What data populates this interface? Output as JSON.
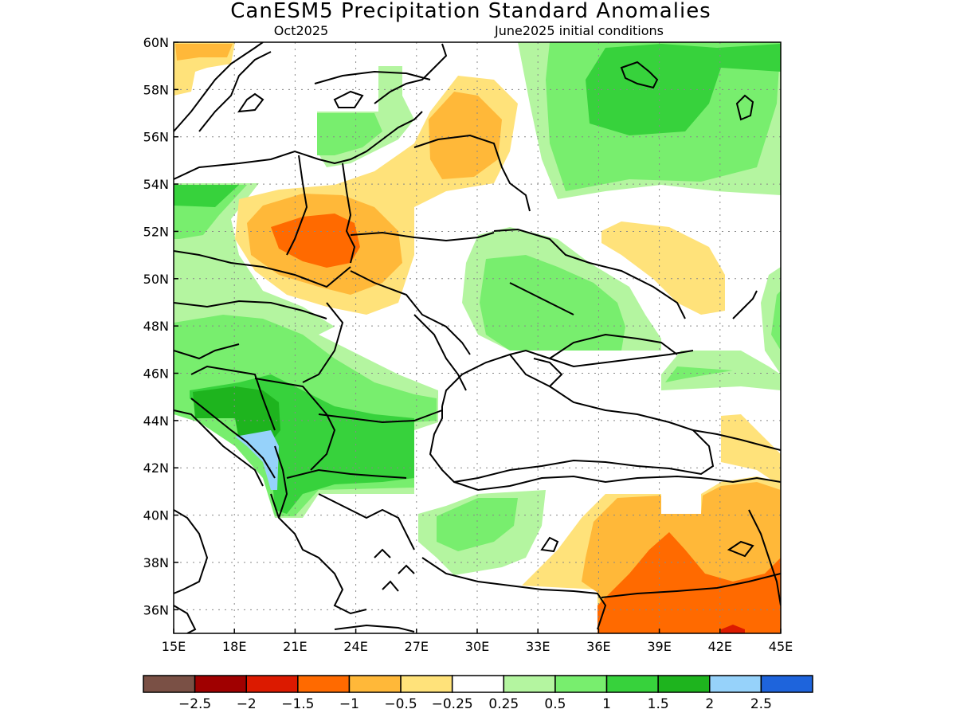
{
  "header": {
    "title": "CanESM5 Precipitation Standard Anomalies",
    "month": "Oct2025",
    "init": "June2025 initial conditions"
  },
  "map": {
    "lon_range": [
      15,
      45
    ],
    "lat_range": [
      35,
      60
    ],
    "grid": true,
    "lon_ticks": [
      "15E",
      "18E",
      "21E",
      "24E",
      "27E",
      "30E",
      "33E",
      "36E",
      "39E",
      "42E",
      "45E"
    ],
    "lat_ticks": [
      "60N",
      "58N",
      "56N",
      "54N",
      "52N",
      "50N",
      "48N",
      "46N",
      "44N",
      "42N",
      "40N",
      "38N",
      "36N"
    ]
  },
  "colorbar": {
    "colors": [
      "#7a5045",
      "#a00000",
      "#dc1a00",
      "#ff6a00",
      "#ffb839",
      "#ffe27a",
      "#ffffff",
      "#b4f5a0",
      "#78ee6e",
      "#37d23c",
      "#1eb41e",
      "#96d2fa",
      "#1e64dc"
    ],
    "labels": [
      "−2.5",
      "−2",
      "−1.5",
      "−1",
      "−0.5",
      "−0.25",
      "0.25",
      "0.5",
      "1",
      "1.5",
      "2",
      "2.5"
    ]
  },
  "colors": {
    "dry_1": "#ffe27a",
    "dry_2": "#ffb839",
    "dry_3": "#ff6a00",
    "dry_4": "#dc1a00",
    "wet_1": "#b4f5a0",
    "wet_2": "#78ee6e",
    "wet_3": "#37d23c",
    "wet_4": "#1eb41e",
    "wet_5": "#96d2fa"
  }
}
